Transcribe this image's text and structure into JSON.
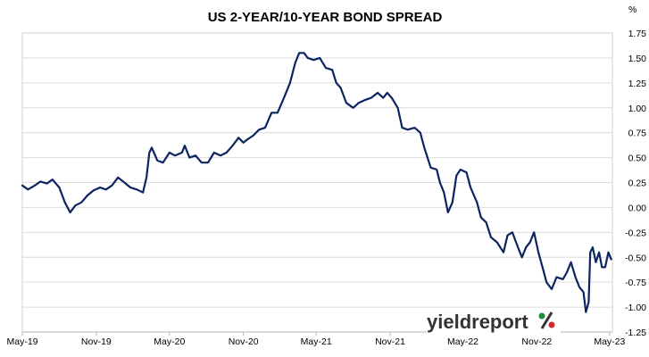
{
  "chart_data": {
    "type": "line",
    "title": "US 2-YEAR/10-YEAR BOND SPREAD",
    "ylabel": "%",
    "xlabel": "",
    "ylim": [
      -1.25,
      1.75
    ],
    "xlim": [
      "2019-05-01",
      "2023-05-08"
    ],
    "y_ticks": [
      "1.75",
      "1.50",
      "1.25",
      "1.00",
      "0.75",
      "0.50",
      "0.25",
      "0.00",
      "-0.25",
      "-0.50",
      "-0.75",
      "-1.00",
      "-1.25"
    ],
    "x_ticks": [
      {
        "label": "May-19",
        "date": "2019-05-01"
      },
      {
        "label": "Nov-19",
        "date": "2019-11-01"
      },
      {
        "label": "May-20",
        "date": "2020-05-01"
      },
      {
        "label": "Nov-20",
        "date": "2020-11-01"
      },
      {
        "label": "May-21",
        "date": "2021-05-01"
      },
      {
        "label": "Nov-21",
        "date": "2021-11-01"
      },
      {
        "label": "May-22",
        "date": "2022-05-01"
      },
      {
        "label": "Nov-22",
        "date": "2022-11-01"
      },
      {
        "label": "May-23",
        "date": "2023-05-01"
      }
    ],
    "grid": true,
    "legend": "none",
    "series": [
      {
        "color": "#0d2461",
        "points": [
          [
            "2019-05-01",
            0.22
          ],
          [
            "2019-05-15",
            0.18
          ],
          [
            "2019-06-01",
            0.22
          ],
          [
            "2019-06-15",
            0.26
          ],
          [
            "2019-07-01",
            0.24
          ],
          [
            "2019-07-15",
            0.28
          ],
          [
            "2019-08-01",
            0.2
          ],
          [
            "2019-08-15",
            0.05
          ],
          [
            "2019-08-28",
            -0.05
          ],
          [
            "2019-09-10",
            0.02
          ],
          [
            "2019-09-25",
            0.05
          ],
          [
            "2019-10-10",
            0.12
          ],
          [
            "2019-10-25",
            0.17
          ],
          [
            "2019-11-10",
            0.2
          ],
          [
            "2019-11-25",
            0.18
          ],
          [
            "2019-12-10",
            0.22
          ],
          [
            "2019-12-25",
            0.3
          ],
          [
            "2020-01-10",
            0.25
          ],
          [
            "2020-01-25",
            0.2
          ],
          [
            "2020-02-10",
            0.18
          ],
          [
            "2020-02-25",
            0.15
          ],
          [
            "2020-03-05",
            0.3
          ],
          [
            "2020-03-12",
            0.55
          ],
          [
            "2020-03-18",
            0.6
          ],
          [
            "2020-04-01",
            0.47
          ],
          [
            "2020-04-15",
            0.45
          ],
          [
            "2020-05-01",
            0.55
          ],
          [
            "2020-05-15",
            0.52
          ],
          [
            "2020-06-01",
            0.55
          ],
          [
            "2020-06-08",
            0.62
          ],
          [
            "2020-06-20",
            0.5
          ],
          [
            "2020-07-05",
            0.52
          ],
          [
            "2020-07-20",
            0.45
          ],
          [
            "2020-08-05",
            0.45
          ],
          [
            "2020-08-20",
            0.55
          ],
          [
            "2020-09-05",
            0.52
          ],
          [
            "2020-09-20",
            0.55
          ],
          [
            "2020-10-05",
            0.62
          ],
          [
            "2020-10-20",
            0.7
          ],
          [
            "2020-11-01",
            0.65
          ],
          [
            "2020-11-10",
            0.68
          ],
          [
            "2020-11-25",
            0.72
          ],
          [
            "2020-12-10",
            0.78
          ],
          [
            "2020-12-25",
            0.8
          ],
          [
            "2021-01-10",
            0.95
          ],
          [
            "2021-01-25",
            0.95
          ],
          [
            "2021-02-10",
            1.1
          ],
          [
            "2021-02-25",
            1.25
          ],
          [
            "2021-03-10",
            1.45
          ],
          [
            "2021-03-20",
            1.55
          ],
          [
            "2021-04-01",
            1.55
          ],
          [
            "2021-04-10",
            1.5
          ],
          [
            "2021-04-25",
            1.48
          ],
          [
            "2021-05-10",
            1.5
          ],
          [
            "2021-05-25",
            1.4
          ],
          [
            "2021-06-10",
            1.38
          ],
          [
            "2021-06-20",
            1.25
          ],
          [
            "2021-07-01",
            1.2
          ],
          [
            "2021-07-15",
            1.05
          ],
          [
            "2021-08-01",
            1.0
          ],
          [
            "2021-08-15",
            1.05
          ],
          [
            "2021-09-01",
            1.08
          ],
          [
            "2021-09-15",
            1.1
          ],
          [
            "2021-10-01",
            1.15
          ],
          [
            "2021-10-15",
            1.1
          ],
          [
            "2021-10-25",
            1.15
          ],
          [
            "2021-11-05",
            1.1
          ],
          [
            "2021-11-20",
            1.0
          ],
          [
            "2021-12-01",
            0.8
          ],
          [
            "2021-12-15",
            0.78
          ],
          [
            "2022-01-01",
            0.8
          ],
          [
            "2022-01-15",
            0.75
          ],
          [
            "2022-01-25",
            0.6
          ],
          [
            "2022-02-10",
            0.4
          ],
          [
            "2022-02-25",
            0.38
          ],
          [
            "2022-03-05",
            0.25
          ],
          [
            "2022-03-15",
            0.15
          ],
          [
            "2022-03-25",
            -0.05
          ],
          [
            "2022-04-05",
            0.05
          ],
          [
            "2022-04-15",
            0.32
          ],
          [
            "2022-04-25",
            0.38
          ],
          [
            "2022-05-10",
            0.35
          ],
          [
            "2022-05-20",
            0.2
          ],
          [
            "2022-06-05",
            0.05
          ],
          [
            "2022-06-15",
            -0.1
          ],
          [
            "2022-06-28",
            -0.15
          ],
          [
            "2022-07-10",
            -0.3
          ],
          [
            "2022-07-25",
            -0.35
          ],
          [
            "2022-08-10",
            -0.45
          ],
          [
            "2022-08-20",
            -0.28
          ],
          [
            "2022-09-01",
            -0.25
          ],
          [
            "2022-09-15",
            -0.4
          ],
          [
            "2022-09-25",
            -0.5
          ],
          [
            "2022-10-05",
            -0.4
          ],
          [
            "2022-10-15",
            -0.35
          ],
          [
            "2022-10-25",
            -0.25
          ],
          [
            "2022-11-05",
            -0.45
          ],
          [
            "2022-11-15",
            -0.6
          ],
          [
            "2022-11-25",
            -0.75
          ],
          [
            "2022-12-08",
            -0.82
          ],
          [
            "2022-12-20",
            -0.7
          ],
          [
            "2023-01-05",
            -0.72
          ],
          [
            "2023-01-15",
            -0.65
          ],
          [
            "2023-01-25",
            -0.55
          ],
          [
            "2023-02-05",
            -0.7
          ],
          [
            "2023-02-15",
            -0.8
          ],
          [
            "2023-02-25",
            -0.85
          ],
          [
            "2023-03-03",
            -1.05
          ],
          [
            "2023-03-10",
            -0.95
          ],
          [
            "2023-03-14",
            -0.45
          ],
          [
            "2023-03-20",
            -0.4
          ],
          [
            "2023-03-28",
            -0.55
          ],
          [
            "2023-04-05",
            -0.45
          ],
          [
            "2023-04-12",
            -0.6
          ],
          [
            "2023-04-20",
            -0.6
          ],
          [
            "2023-04-28",
            -0.45
          ],
          [
            "2023-05-05",
            -0.52
          ]
        ]
      }
    ]
  },
  "watermark": {
    "word": "yieldreport",
    "symbol": "%",
    "colors": {
      "text": "#333333",
      "green": "#1e8c3a",
      "red": "#d42a2a"
    }
  }
}
